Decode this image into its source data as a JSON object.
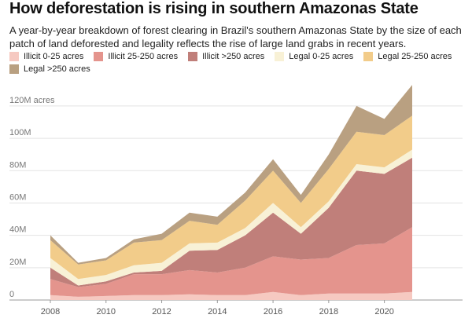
{
  "header": {
    "title": "How deforestation is rising in southern Amazonas State",
    "subtitle": "A year-by-year breakdown of forest clearing in Brazil's southern Amazonas State by the size of each patch of land deforested and legality reflects the rise of large land grabs in recent years."
  },
  "chart_data": {
    "type": "area",
    "stacked": true,
    "title": "How deforestation is rising in southern Amazonas State",
    "subtitle": "A year-by-year breakdown of forest clearing in Brazil's southern Amazonas State by the size of each patch of land deforested and legality reflects the rise of large land grabs in recent years.",
    "xlabel": "",
    "ylabel": "",
    "x": [
      2008,
      2009,
      2010,
      2011,
      2012,
      2013,
      2014,
      2015,
      2016,
      2017,
      2018,
      2019,
      2020,
      2021
    ],
    "x_ticks": [
      "2008",
      "2010",
      "2012",
      "2014",
      "2016",
      "2018",
      "2020"
    ],
    "y_ticks": [
      {
        "value": 0,
        "label": "0"
      },
      {
        "value": 20000000,
        "label": "20M"
      },
      {
        "value": 40000000,
        "label": "40M"
      },
      {
        "value": 60000000,
        "label": "60M"
      },
      {
        "value": 80000000,
        "label": "80M"
      },
      {
        "value": 100000000,
        "label": "100M"
      },
      {
        "value": 120000000,
        "label": "120M acres"
      }
    ],
    "ylim": [
      0,
      135000000
    ],
    "grid": true,
    "legend_position": "top",
    "series": [
      {
        "name": "Illicit 0-25 acres",
        "color": "#f6c9c1",
        "values": [
          3000000,
          2000000,
          2500000,
          3000000,
          3000000,
          3500000,
          3000000,
          3000000,
          5000000,
          3000000,
          4000000,
          4000000,
          4000000,
          5000000
        ]
      },
      {
        "name": "Illicit 25-250 acres",
        "color": "#e4948d",
        "values": [
          10000000,
          6000000,
          7500000,
          13000000,
          13000000,
          15000000,
          14000000,
          17000000,
          22000000,
          22000000,
          22000000,
          30000000,
          31000000,
          40000000
        ]
      },
      {
        "name": "Illicit >250 acres",
        "color": "#c07f7a",
        "values": [
          7000000,
          1000000,
          1500000,
          1000000,
          2000000,
          12000000,
          14000000,
          20000000,
          27000000,
          16000000,
          31000000,
          46000000,
          43000000,
          43000000
        ]
      },
      {
        "name": "Legal 0-25 acres",
        "color": "#f8f1d6",
        "values": [
          6000000,
          4000000,
          4000000,
          4500000,
          5000000,
          4500000,
          4500000,
          4500000,
          6000000,
          4000000,
          4000000,
          4000000,
          4000000,
          5000000
        ]
      },
      {
        "name": "Legal 25-250 acres",
        "color": "#f2cc8a",
        "values": [
          11000000,
          9000000,
          9000000,
          14000000,
          14000000,
          14000000,
          11000000,
          17000000,
          20000000,
          15000000,
          20000000,
          20000000,
          20000000,
          21000000
        ]
      },
      {
        "name": "Legal >250 acres",
        "color": "#b9a081",
        "values": [
          3000000,
          1000000,
          1500000,
          2000000,
          4000000,
          5000000,
          5000000,
          5000000,
          7000000,
          5000000,
          9000000,
          16000000,
          10000000,
          19000000
        ]
      }
    ]
  }
}
